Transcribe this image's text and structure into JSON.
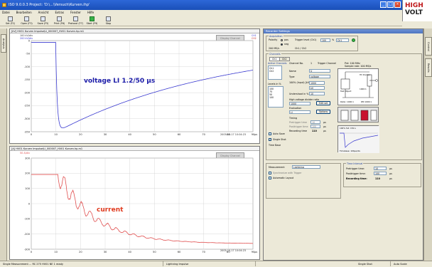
{
  "window": {
    "title": "ISO 9.0.0.3 Project: 'D:\\...\\Versuch\\Kurven.ihp'",
    "buttons": [
      "_",
      "□",
      "×"
    ]
  },
  "logo": {
    "line1": "HIGH",
    "line2": "VOLT"
  },
  "menu": [
    "Datei",
    "Bearbeiten",
    "Ansicht",
    "Extras",
    "Fenster",
    "Hilfe"
  ],
  "toolbar": [
    {
      "icon": "new-icon",
      "label": "Set (F2)"
    },
    {
      "icon": "open-icon",
      "label": "Open (F3)"
    },
    {
      "icon": "save-icon",
      "label": "Save (F5)"
    },
    {
      "icon": "print-icon",
      "label": "Print (F6)"
    },
    {
      "icon": "protocol-icon",
      "label": "Protocol (F7)"
    },
    {
      "icon": "start-icon",
      "label": "Start (F9)"
    },
    {
      "icon": "stop-icon",
      "label": "Stop"
    }
  ],
  "left_tab": "Analysis",
  "right_tabs": [
    "Control",
    "Results"
  ],
  "plot_voltage": {
    "header": "[kV]  HV01 Kurven Impulse\\LI_000007_HV01 Kurven.hp.m1",
    "sub1": "100 kV/div",
    "sub2": "200 kV/div",
    "info_box": "Display Channel",
    "ch_right": "CH1",
    "ch_right2": "CH2",
    "label": "voltage LI 1.2/50 µs",
    "timestamp": "2005-10-17 10:04:23",
    "y_ticks": [
      "0",
      "-50",
      "-100",
      "-150",
      "-200",
      "-250",
      "-300",
      "-350"
    ],
    "x_ticks": [
      "0",
      "10",
      "20",
      "30",
      "40",
      "50",
      "60",
      "70",
      "80",
      "90"
    ],
    "x_unit": "µs",
    "color": "#3a3ad0"
  },
  "plot_current": {
    "header": "[A]  HV01 Kurven Impulse\\LI_000007_HV01 Kurven.hp.m1",
    "sub1": "50 A/div",
    "info_box": "Display Channel",
    "label": "current",
    "timestamp": "2005-10-17 10:04:23",
    "y_ticks": [
      "300",
      "200",
      "100",
      "0",
      "-100",
      "-200",
      "-300"
    ],
    "x_ticks": [
      "0",
      "10",
      "20",
      "30",
      "40",
      "50",
      "60",
      "70",
      "80",
      "90"
    ],
    "x_unit": "µs",
    "color": "#e05050"
  },
  "control": {
    "title": "Recorder Settings",
    "acq_group": "Acquisition",
    "acq_polarity": "Polarity",
    "acq_pos": "pos",
    "acq_neg": "neg",
    "acq_trigger": "Trigger level (Ch1)",
    "acq_trigger_val": "100",
    "acq_trigger_unit": "%",
    "acq_mode": "Ch1",
    "acq_rate": "200 MS/s",
    "acq_samples": "Ch1 / Ch2",
    "channels_group": "Channels",
    "tab_ch1": "Ch1",
    "tab_ch2": "Ch2",
    "channel_no_label": "Channel No.",
    "channel_no_val": "1",
    "trigger_channel": "Trigger Channel",
    "rate_info": "Prd: 100 MHz",
    "sample_info": "Sample rate: 100 MS/s",
    "name_label": "Name",
    "name_val": "U",
    "type_label": "Type",
    "type_val": "voltage",
    "input_label": "100% (Input) [kV]",
    "input_val": "1000",
    "unit_val": "kV",
    "undershoot_label": "Undershoot in %",
    "undershoot_val": "10",
    "divider_label": "High voltage divider ratio",
    "divider_val": "1000",
    "edit_btn": "Edit set",
    "evaluation_label": "Evaluation",
    "evaluation_val": "LI",
    "options_btn": "Options",
    "hv_divider_label": "HV Divider",
    "hv_divider_sub": "1000:1",
    "test_object_label": "Test Object",
    "ratio_label": "Ratio: 1000:1",
    "ratio2_label": "RM 1000:1",
    "active_channels_label": "Active Channels",
    "active_channels": [
      "Ch1",
      "Ch2"
    ],
    "levels_label": "Levels in %",
    "levels": [
      "100",
      "75",
      "50",
      "100"
    ],
    "auto_save": "Auto Save",
    "single_shot": "Single Shot",
    "time_base_label": "Time Base",
    "timing_label": "Timing",
    "pretrig_label": "Pretrigger time",
    "pretrig_val": "10",
    "pretrig_unit": "µs",
    "posttrig_label": "Posttrigger time",
    "posttrig_val": "100",
    "posttrig_unit": "µs",
    "recording_label": "Recording time",
    "recording_val": "110",
    "recording_unit": "µs",
    "measurement_label": "Measurement",
    "measurement_val": "Lightning",
    "auto_layout": "Automatic Layout",
    "sync_label": "Synchronize with Trigger",
    "time_interval_label": "Time Interval",
    "pre_label": "Pretrigger time:",
    "pre_val": "10",
    "post_label": "Posttrigger time:",
    "post_val": "100",
    "rec_label": "Recording time:",
    "rec_val": "110",
    "unit_us": "µs",
    "preview_label": "100% full: 150 s",
    "preview_sub": "Timebase: 100µs/div"
  },
  "status": [
    "Single Measurement ...  RC 275  HV01 NE  1  ready",
    "Lightning Impulse",
    "Single Shot",
    "Auto Scale"
  ]
}
